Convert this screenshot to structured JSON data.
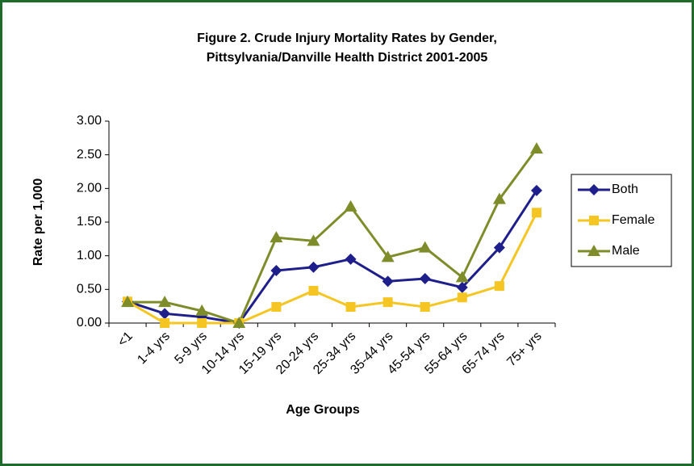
{
  "chart_data": {
    "type": "line",
    "title": [
      "Figure 2. Crude Injury Mortality Rates by Gender,",
      "Pittsylvania/Danville Health District 2001-2005"
    ],
    "x_label": "Age Groups",
    "y_label": "Rate per 1,000",
    "categories": [
      "<1",
      "1-4 yrs",
      "5-9 yrs",
      "10-14 yrs",
      "15-19 yrs",
      "20-24 yrs",
      "25-34 yrs",
      "35-44 yrs",
      "45-54 yrs",
      "55-64 yrs",
      "65-74 yrs",
      "75+ yrs"
    ],
    "series": [
      {
        "name": "Both",
        "color": "#1f1f8c",
        "marker": "diamond",
        "values": [
          0.32,
          0.14,
          0.09,
          0.0,
          0.78,
          0.83,
          0.95,
          0.62,
          0.66,
          0.53,
          1.12,
          1.97
        ]
      },
      {
        "name": "Female",
        "color": "#f5c523",
        "marker": "square",
        "values": [
          0.32,
          0.0,
          0.0,
          0.0,
          0.24,
          0.48,
          0.24,
          0.31,
          0.24,
          0.38,
          0.55,
          1.64
        ]
      },
      {
        "name": "Male",
        "color": "#7f8c2a",
        "marker": "triangle",
        "values": [
          0.31,
          0.31,
          0.18,
          0.0,
          1.27,
          1.22,
          1.73,
          0.98,
          1.12,
          0.68,
          1.84,
          2.59
        ]
      }
    ],
    "ylim": [
      0,
      3
    ],
    "yticks": [
      {
        "value": 0,
        "label": "0.00"
      },
      {
        "value": 0.5,
        "label": "0.50"
      },
      {
        "value": 1,
        "label": "1.00"
      },
      {
        "value": 1.5,
        "label": "1.50"
      },
      {
        "value": 2,
        "label": "2.00"
      },
      {
        "value": 2.5,
        "label": "2.50"
      },
      {
        "value": 3,
        "label": "3.00"
      }
    ],
    "legend": "right"
  }
}
